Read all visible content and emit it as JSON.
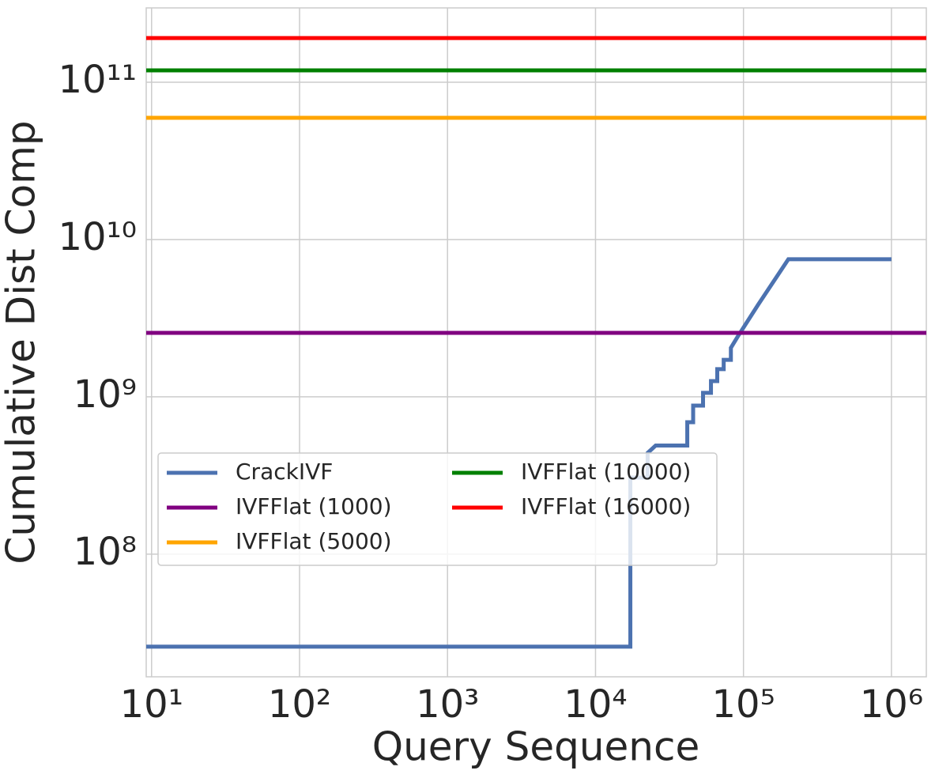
{
  "chart_data": {
    "type": "line",
    "xlabel": "Query Sequence",
    "ylabel": "Cumulative Dist Comp",
    "xscale": "log",
    "yscale": "log",
    "grid": true,
    "legend": "lower left",
    "xlim": [
      9.2,
      1720000
    ],
    "ylim": [
      16600000,
      297000000000
    ],
    "xticks": [
      {
        "value": 10,
        "label": "10¹"
      },
      {
        "value": 100,
        "label": "10²"
      },
      {
        "value": 1000,
        "label": "10³"
      },
      {
        "value": 10000,
        "label": "10⁴"
      },
      {
        "value": 100000,
        "label": "10⁵"
      },
      {
        "value": 1000000,
        "label": "10⁶"
      }
    ],
    "yticks": [
      {
        "value": 100000000,
        "label": "10⁸"
      },
      {
        "value": 1000000000,
        "label": "10⁹"
      },
      {
        "value": 10000000000,
        "label": "10¹⁰"
      },
      {
        "value": 100000000000,
        "label": "10¹¹"
      }
    ],
    "series": [
      {
        "name": "CrackIVF",
        "color": "#4c72b0",
        "x": [
          9.2,
          17200,
          17200,
          22500,
          22500,
          25500,
          41700,
          41700,
          45700,
          45700,
          53300,
          53300,
          60300,
          60300,
          66500,
          66500,
          73500,
          73500,
          82200,
          82200,
          91000,
          126000,
          201000,
          1000000
        ],
        "values": [
          25800000,
          25800000,
          307000000,
          307000000,
          440000000,
          490000000,
          490000000,
          690000000,
          690000000,
          880000000,
          880000000,
          1060000000,
          1060000000,
          1260000000,
          1260000000,
          1500000000,
          1500000000,
          1720000000,
          1720000000,
          2050000000,
          2400000000,
          3870000000,
          7500000000,
          7500000000
        ]
      },
      {
        "name": "IVFFlat (1000)",
        "color": "#800080",
        "x": [
          9.2,
          1720000
        ],
        "values": [
          2550000000,
          2550000000
        ]
      },
      {
        "name": "IVFFlat (5000)",
        "color": "#ffa500",
        "x": [
          9.2,
          1720000
        ],
        "values": [
          59400000000,
          59400000000
        ]
      },
      {
        "name": "IVFFlat (10000)",
        "color": "#008000",
        "x": [
          9.2,
          1720000
        ],
        "values": [
          119000000000,
          119000000000
        ]
      },
      {
        "name": "IVFFlat (16000)",
        "color": "#ff0000",
        "x": [
          9.2,
          1720000
        ],
        "values": [
          191000000000,
          191000000000
        ]
      }
    ]
  }
}
